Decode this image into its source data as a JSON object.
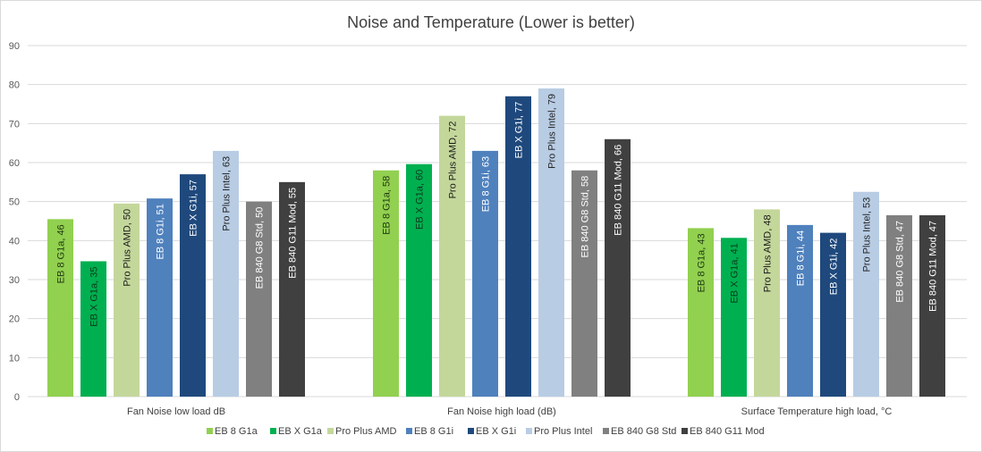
{
  "chart_data": {
    "type": "bar",
    "title": "Noise and Temperature (Lower is better)",
    "xlabel": "",
    "ylabel": "",
    "ylim": [
      0,
      90
    ],
    "yticks": [
      0,
      10,
      20,
      30,
      40,
      50,
      60,
      70,
      80,
      90
    ],
    "grid": true,
    "legend_position": "bottom",
    "categories": [
      "Fan Noise low load dB",
      "Fan Noise high load (dB)",
      "Surface Temperature high load, °C"
    ],
    "series": [
      {
        "name": "EB 8 G1a",
        "color": "#92d050",
        "label_color": "#1f3a0f",
        "values": [
          45.5,
          58,
          43.2
        ],
        "labels": [
          "EB 8 G1a, 46",
          "EB 8 G1a, 58",
          "EB 8 G1a, 43"
        ]
      },
      {
        "name": "EB X G1a",
        "color": "#00b050",
        "label_color": "#0b3a1c",
        "values": [
          34.7,
          59.6,
          40.7
        ],
        "labels": [
          "EB X G1a, 35",
          "EB X G1a, 60",
          "EB X G1a, 41"
        ]
      },
      {
        "name": "Pro Plus AMD",
        "color": "#c4d79b",
        "label_color": "#1a1a1a",
        "values": [
          49.5,
          72,
          48
        ],
        "labels": [
          "Pro Plus AMD, 50",
          "Pro Plus AMD, 72",
          "Pro Plus AMD, 48"
        ]
      },
      {
        "name": "EB 8 G1i",
        "color": "#4f81bd",
        "label_color": "#ffffff",
        "values": [
          50.8,
          63,
          44
        ],
        "labels": [
          "EB 8 G1i, 51",
          "EB 8 G1i, 63",
          "EB 8 G1i, 44"
        ]
      },
      {
        "name": "EB X G1i",
        "color": "#1f497d",
        "label_color": "#ffffff",
        "values": [
          57,
          77,
          42
        ],
        "labels": [
          "EB X G1i, 57",
          "EB X G1i, 77",
          "EB X G1i, 42"
        ]
      },
      {
        "name": "Pro Plus Intel",
        "color": "#b8cce4",
        "label_color": "#262626",
        "values": [
          63,
          79,
          52.5
        ],
        "labels": [
          "Pro Plus Intel, 63",
          "Pro Plus Intel, 79",
          "Pro Plus Intel, 53"
        ]
      },
      {
        "name": "EB 840 G8 Std",
        "color": "#808080",
        "label_color": "#ffffff",
        "values": [
          50,
          58,
          46.5
        ],
        "labels": [
          "EB 840 G8 Std, 50",
          "EB 840 G8 Std, 58",
          "EB 840 G8 Std, 47"
        ]
      },
      {
        "name": "EB 840 G11 Mod",
        "color": "#404040",
        "label_color": "#ffffff",
        "values": [
          55,
          66,
          46.5
        ],
        "labels": [
          "EB 840 G11 Mod, 55",
          "EB 840 G11 Mod, 66",
          "EB 840 G11 Mod, 47"
        ]
      }
    ]
  }
}
